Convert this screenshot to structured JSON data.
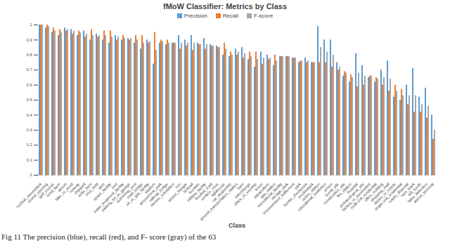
{
  "chart_data": {
    "type": "bar",
    "title": "fMoW Classifier: Metrics by Class",
    "x_label": "Class",
    "caption": "Fig 11 The precision (blue), recall (red), and F- score (gray) of the 63",
    "categories": [
      "nuclear_powerplant",
      "tunnel_opening",
      "golf_course",
      "wind_farm",
      "airport",
      "lake_or_pond",
      "runway",
      "shipyard",
      "solar_farm",
      "crop_field",
      "dam",
      "space_facility",
      "port",
      "water_treatment_facility",
      "parking_lot_or_garage",
      "swimming_pool",
      "road_bridge",
      "oil_or_gas_facility",
      "stadium",
      "amusement_park",
      "railway_bridge",
      "electric_substation",
      "zoo",
      "airport_hangar",
      "helipad",
      "fountain",
      "military_facility",
      "flooded_road",
      "surface_mine",
      "lighthouse",
      "car_dealership",
      "ground_transportation_station",
      "barn",
      "interchange",
      "place_of_worship",
      "tower",
      "aquaculture",
      "gas_station",
      "recreational_facility",
      "storage_tank",
      "impoverished_settlement",
      "park",
      "border_checkpoint",
      "smokestack",
      "police_station",
      "educational_institution",
      "prison",
      "burial_site",
      "construction_site",
      "fire_station",
      "hospital",
      "archaeological_site",
      "factory_or_powerplant",
      "multi-unit_residential",
      "office_building",
      "shopping_mall",
      "debris_or_rubble",
      "single-unit_residential",
      "waste_disposal",
      "race_track",
      "toll_booth",
      "false_detection",
      "airport_terminal"
    ],
    "series": [
      {
        "name": "Precision",
        "color": "#5b9bd5",
        "values": [
          1.0,
          0.98,
          0.95,
          0.93,
          0.98,
          0.97,
          0.93,
          0.96,
          0.9,
          0.94,
          0.9,
          0.88,
          0.93,
          0.9,
          0.91,
          0.88,
          0.84,
          0.9,
          0.74,
          0.88,
          0.87,
          0.88,
          0.93,
          0.9,
          0.93,
          0.88,
          0.91,
          0.87,
          0.86,
          0.8,
          0.79,
          0.84,
          0.85,
          0.77,
          0.72,
          0.82,
          0.8,
          0.73,
          0.79,
          0.79,
          0.78,
          0.75,
          0.78,
          0.75,
          0.99,
          0.9,
          0.9,
          0.75,
          0.66,
          0.62,
          0.81,
          0.73,
          0.65,
          0.62,
          0.7,
          0.76,
          0.52,
          0.5,
          0.6,
          0.71,
          0.52,
          0.58,
          0.4
        ]
      },
      {
        "name": "Recall",
        "color": "#ed7d31",
        "values": [
          1.0,
          1.0,
          0.98,
          0.97,
          0.96,
          0.94,
          0.96,
          0.92,
          0.97,
          0.92,
          0.96,
          0.96,
          0.9,
          0.93,
          0.9,
          0.93,
          0.93,
          0.88,
          0.95,
          0.9,
          0.9,
          0.88,
          0.84,
          0.86,
          0.83,
          0.87,
          0.84,
          0.86,
          0.85,
          0.88,
          0.82,
          0.8,
          0.78,
          0.82,
          0.82,
          0.74,
          0.77,
          0.8,
          0.79,
          0.79,
          0.78,
          0.76,
          0.75,
          0.75,
          0.75,
          0.75,
          0.72,
          0.7,
          0.69,
          0.67,
          0.59,
          0.6,
          0.66,
          0.65,
          0.6,
          0.56,
          0.6,
          0.57,
          0.47,
          0.42,
          0.42,
          0.38,
          0.24
        ]
      },
      {
        "name": "F-score",
        "color": "#a5a5a5",
        "values": [
          1.0,
          0.99,
          0.96,
          0.95,
          0.97,
          0.96,
          0.95,
          0.94,
          0.93,
          0.93,
          0.93,
          0.92,
          0.92,
          0.91,
          0.91,
          0.9,
          0.88,
          0.89,
          0.83,
          0.89,
          0.88,
          0.88,
          0.88,
          0.88,
          0.88,
          0.87,
          0.87,
          0.86,
          0.85,
          0.84,
          0.8,
          0.82,
          0.81,
          0.79,
          0.77,
          0.78,
          0.78,
          0.76,
          0.79,
          0.79,
          0.78,
          0.76,
          0.76,
          0.75,
          0.85,
          0.82,
          0.8,
          0.72,
          0.68,
          0.65,
          0.68,
          0.66,
          0.66,
          0.64,
          0.65,
          0.64,
          0.56,
          0.53,
          0.53,
          0.53,
          0.47,
          0.46,
          0.3
        ]
      }
    ],
    "ylim": [
      0,
      1
    ],
    "yticks": [
      0,
      0.1,
      0.2,
      0.3,
      0.4,
      0.5,
      0.6,
      0.7,
      0.8,
      0.9,
      1
    ],
    "grid": false,
    "legend": "top"
  }
}
